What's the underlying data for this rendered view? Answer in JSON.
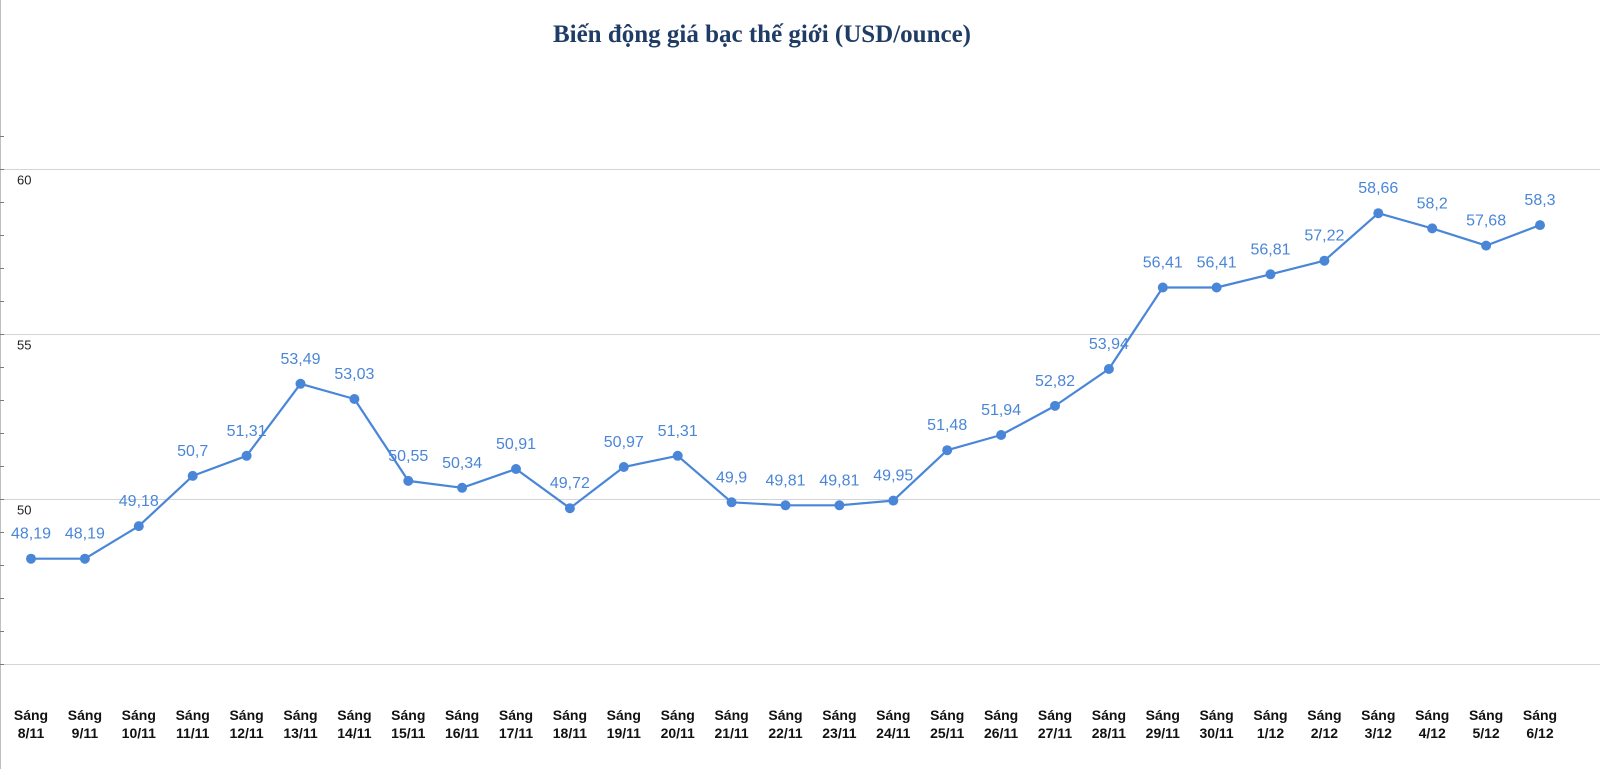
{
  "chart_data": {
    "type": "line",
    "title": "Biến động giá bạc thế giới (USD/ounce)",
    "xlabel": "",
    "ylabel": "",
    "ylim": [
      45,
      61.5
    ],
    "yticks": [
      {
        "value": 60,
        "label": "60"
      },
      {
        "value": 55,
        "label": "55"
      },
      {
        "value": 50,
        "label": "50"
      },
      {
        "value": 45,
        "label": ""
      }
    ],
    "grid": true,
    "legend": "none",
    "categories": [
      [
        "Sáng",
        "8/11"
      ],
      [
        "Sáng",
        "9/11"
      ],
      [
        "Sáng",
        "10/11"
      ],
      [
        "Sáng",
        "11/11"
      ],
      [
        "Sáng",
        "12/11"
      ],
      [
        "Sáng",
        "13/11"
      ],
      [
        "Sáng",
        "14/11"
      ],
      [
        "Sáng",
        "15/11"
      ],
      [
        "Sáng",
        "16/11"
      ],
      [
        "Sáng",
        "17/11"
      ],
      [
        "Sáng",
        "18/11"
      ],
      [
        "Sáng",
        "19/11"
      ],
      [
        "Sáng",
        "20/11"
      ],
      [
        "Sáng",
        "21/11"
      ],
      [
        "Sáng",
        "22/11"
      ],
      [
        "Sáng",
        "23/11"
      ],
      [
        "Sáng",
        "24/11"
      ],
      [
        "Sáng",
        "25/11"
      ],
      [
        "Sáng",
        "26/11"
      ],
      [
        "Sáng",
        "27/11"
      ],
      [
        "Sáng",
        "28/11"
      ],
      [
        "Sáng",
        "29/11"
      ],
      [
        "Sáng",
        "30/11"
      ],
      [
        "Sáng",
        "1/12"
      ],
      [
        "Sáng",
        "2/12"
      ],
      [
        "Sáng",
        "3/12"
      ],
      [
        "Sáng",
        "4/12"
      ],
      [
        "Sáng",
        "5/12"
      ],
      [
        "Sáng",
        "6/12"
      ]
    ],
    "series": [
      {
        "name": "Giá bạc",
        "color": "#4a86d8",
        "values": [
          48.19,
          48.19,
          49.18,
          50.7,
          51.31,
          53.49,
          53.03,
          50.55,
          50.34,
          50.91,
          49.72,
          50.97,
          51.31,
          49.9,
          49.81,
          49.81,
          49.95,
          51.48,
          51.94,
          52.82,
          53.94,
          56.41,
          56.41,
          56.81,
          57.22,
          58.66,
          58.2,
          57.68,
          58.3
        ],
        "labels": [
          "48,19",
          "48,19",
          "49,18",
          "50,7",
          "51,31",
          "53,49",
          "53,03",
          "50,55",
          "50,34",
          "50,91",
          "49,72",
          "50,97",
          "51,31",
          "49,9",
          "49,81",
          "49,81",
          "49,95",
          "51,48",
          "51,94",
          "52,82",
          "53,94",
          "56,41",
          "56,41",
          "56,81",
          "57,22",
          "58,66",
          "58,2",
          "57,68",
          "58,3"
        ]
      }
    ]
  }
}
